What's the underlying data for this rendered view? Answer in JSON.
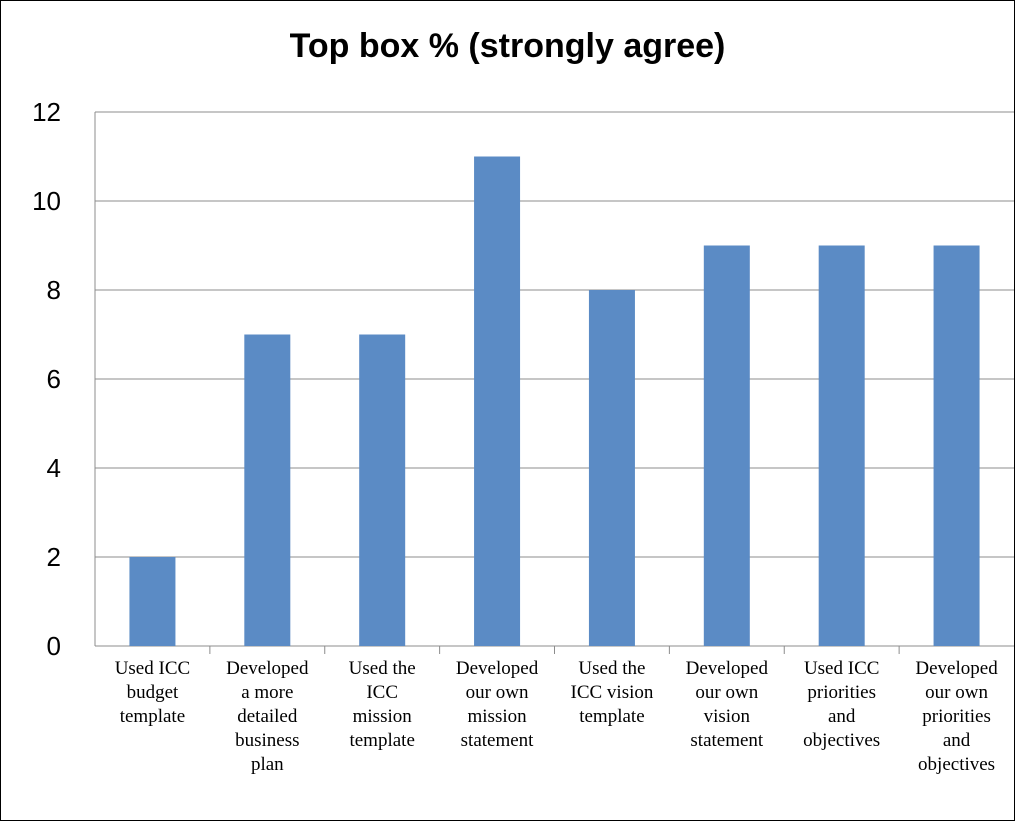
{
  "chart_data": {
    "type": "bar",
    "title": "Top box % (strongly agree)",
    "xlabel": "",
    "ylabel": "",
    "categories": [
      [
        "Used ICC",
        "budget",
        "template"
      ],
      [
        "Developed",
        "a more",
        "detailed",
        "business",
        "plan"
      ],
      [
        "Used the",
        "ICC",
        "mission",
        "template"
      ],
      [
        "Developed",
        "our own",
        "mission",
        "statement"
      ],
      [
        "Used the",
        "ICC vision",
        "template"
      ],
      [
        "Developed",
        "our own",
        "vision",
        "statement"
      ],
      [
        "Used ICC",
        "priorities",
        "and",
        "objectives"
      ],
      [
        "Developed",
        "our own",
        "priorities",
        "and",
        "objectives"
      ]
    ],
    "values": [
      2,
      7,
      7,
      11,
      8,
      9,
      9,
      9
    ],
    "ylim": [
      0,
      12
    ],
    "yticks": [
      0,
      2,
      4,
      6,
      8,
      10,
      12
    ],
    "grid": true,
    "legend": "none",
    "bar_color": "#5b8bc5",
    "grid_color": "#8c8c8c"
  }
}
